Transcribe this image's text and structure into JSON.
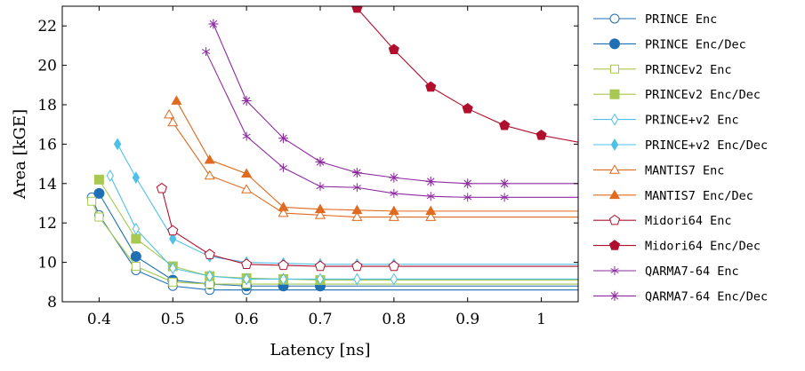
{
  "chart_data": {
    "type": "line",
    "xlabel": "Latency [ns]",
    "ylabel": "Area [kGE]",
    "xlim": [
      0.35,
      1.05
    ],
    "ylim": [
      8,
      23
    ],
    "x_ticks": [
      0.4,
      0.5,
      0.6,
      0.7,
      0.8,
      0.9,
      1.0
    ],
    "x_tick_labels": [
      "0.4",
      "0.5",
      "0.6",
      "0.7",
      "0.8",
      "0.9",
      "1"
    ],
    "y_ticks": [
      8,
      10,
      12,
      14,
      16,
      18,
      20,
      22
    ],
    "y_tick_labels": [
      "8",
      "10",
      "12",
      "14",
      "16",
      "18",
      "20",
      "22"
    ],
    "grid": false,
    "legend_position": "outside-right",
    "series": [
      {
        "name": "PRINCE Enc",
        "color": "#1f6fb4",
        "marker": "circle-open",
        "x": [
          0.39,
          0.4,
          0.45,
          0.5,
          0.55,
          0.6,
          1.05
        ],
        "y": [
          13.3,
          12.4,
          9.6,
          8.8,
          8.6,
          8.6,
          8.6
        ]
      },
      {
        "name": "PRINCE Enc/Dec",
        "color": "#1f6fb4",
        "marker": "circle-filled",
        "x": [
          0.4,
          0.45,
          0.5,
          0.55,
          0.6,
          0.65,
          0.7,
          1.05
        ],
        "y": [
          13.5,
          10.3,
          9.1,
          8.9,
          8.8,
          8.8,
          8.8,
          8.8
        ]
      },
      {
        "name": "PRINCEv2 Enc",
        "color": "#a7c94f",
        "marker": "square-open",
        "x": [
          0.39,
          0.4,
          0.45,
          0.5,
          0.55,
          0.6,
          1.05
        ],
        "y": [
          13.1,
          12.3,
          9.8,
          9.0,
          8.9,
          8.9,
          8.9
        ]
      },
      {
        "name": "PRINCEv2 Enc/Dec",
        "color": "#a7c94f",
        "marker": "square-filled",
        "x": [
          0.4,
          0.45,
          0.5,
          0.55,
          0.6,
          0.65,
          0.7,
          1.05
        ],
        "y": [
          14.2,
          11.2,
          9.8,
          9.3,
          9.2,
          9.15,
          9.1,
          9.1
        ]
      },
      {
        "name": "PRINCE+v2 Enc",
        "color": "#4fc0e8",
        "marker": "diamond-open",
        "x": [
          0.415,
          0.45,
          0.5,
          0.55,
          0.6,
          0.65,
          0.7,
          0.75,
          0.8,
          1.05
        ],
        "y": [
          14.4,
          11.7,
          9.7,
          9.3,
          9.15,
          9.15,
          9.15,
          9.15,
          9.15,
          9.15
        ]
      },
      {
        "name": "PRINCE+v2 Enc/Dec",
        "color": "#4fc0e8",
        "marker": "diamond-filled",
        "x": [
          0.425,
          0.45,
          0.5,
          0.55,
          0.6,
          0.65,
          0.7,
          0.75,
          0.8,
          1.05
        ],
        "y": [
          16.0,
          14.3,
          11.2,
          10.3,
          10.0,
          9.95,
          9.9,
          9.9,
          9.9,
          9.9
        ]
      },
      {
        "name": "MANTIS7 Enc",
        "color": "#e06a1f",
        "marker": "triangle-open",
        "x": [
          0.495,
          0.5,
          0.55,
          0.6,
          0.65,
          0.7,
          0.75,
          0.8,
          0.85,
          1.05
        ],
        "y": [
          17.5,
          17.1,
          14.4,
          13.7,
          12.5,
          12.4,
          12.3,
          12.3,
          12.3,
          12.3
        ]
      },
      {
        "name": "MANTIS7 Enc/Dec",
        "color": "#e06a1f",
        "marker": "triangle-filled",
        "x": [
          0.505,
          0.55,
          0.6,
          0.65,
          0.7,
          0.75,
          0.8,
          0.85,
          1.05
        ],
        "y": [
          18.2,
          15.2,
          14.5,
          12.8,
          12.7,
          12.65,
          12.6,
          12.6,
          12.6
        ]
      },
      {
        "name": "Midori64 Enc",
        "color": "#b0102e",
        "marker": "pentagon-open",
        "x": [
          0.485,
          0.5,
          0.55,
          0.6,
          0.65,
          0.7,
          0.75,
          0.8,
          1.05
        ],
        "y": [
          13.75,
          11.6,
          10.4,
          9.9,
          9.85,
          9.8,
          9.8,
          9.8,
          9.8
        ]
      },
      {
        "name": "Midori64 Enc/Dec",
        "color": "#b0102e",
        "marker": "pentagon-filled",
        "x": [
          0.75,
          0.8,
          0.85,
          0.9,
          0.95,
          1.0,
          1.05
        ],
        "y": [
          22.9,
          20.8,
          18.9,
          17.8,
          16.95,
          16.45,
          16.1
        ]
      },
      {
        "name": "QARMA7-64 Enc",
        "color": "#8e2ba0",
        "marker": "star",
        "x": [
          0.545,
          0.6,
          0.65,
          0.7,
          0.75,
          0.8,
          0.85,
          0.9,
          0.95,
          1.05
        ],
        "y": [
          20.7,
          16.4,
          14.8,
          13.85,
          13.8,
          13.5,
          13.35,
          13.3,
          13.3,
          13.3
        ]
      },
      {
        "name": "QARMA7-64 Enc/Dec",
        "color": "#8e2ba0",
        "marker": "asterisk",
        "x": [
          0.555,
          0.6,
          0.65,
          0.7,
          0.75,
          0.8,
          0.85,
          0.9,
          0.95,
          1.05
        ],
        "y": [
          22.1,
          18.2,
          16.3,
          15.1,
          14.55,
          14.3,
          14.1,
          14.0,
          14.0,
          14.0
        ]
      }
    ]
  }
}
